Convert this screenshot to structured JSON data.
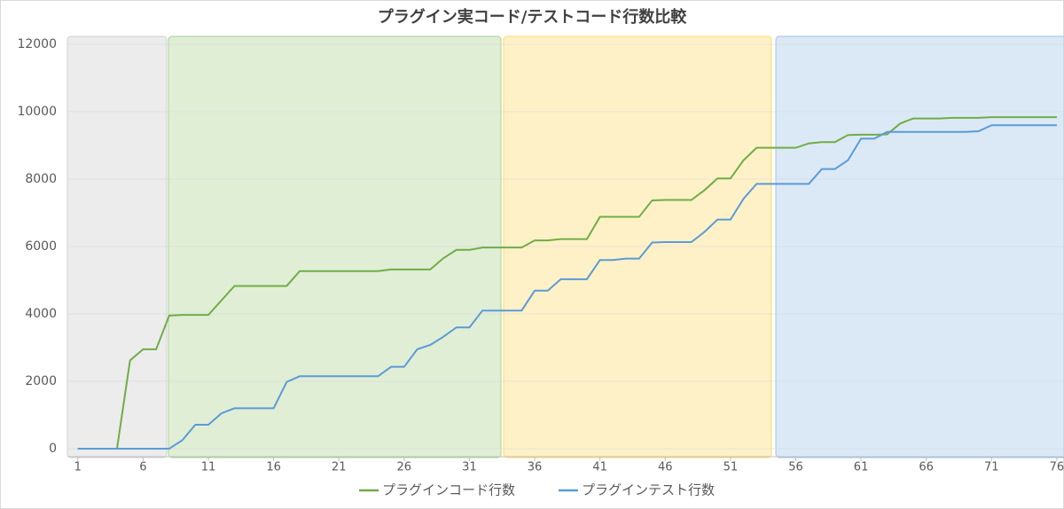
{
  "chart_data": {
    "type": "line",
    "title": "プラグイン実コード/テストコード行数比較",
    "x": [
      1,
      2,
      3,
      4,
      5,
      6,
      7,
      8,
      9,
      10,
      11,
      12,
      13,
      14,
      15,
      16,
      17,
      18,
      19,
      20,
      21,
      22,
      23,
      24,
      25,
      26,
      27,
      28,
      29,
      30,
      31,
      32,
      33,
      34,
      35,
      36,
      37,
      38,
      39,
      40,
      41,
      42,
      43,
      44,
      45,
      46,
      47,
      48,
      49,
      50,
      51,
      52,
      53,
      54,
      55,
      56,
      57,
      58,
      59,
      60,
      61,
      62,
      63,
      64,
      65,
      66,
      67,
      68,
      69,
      70,
      71,
      72,
      73,
      74,
      75,
      76
    ],
    "series": [
      {
        "name": "プラグインコード行数",
        "color": "#70ad47",
        "values": [
          0,
          0,
          0,
          0,
          2620,
          2950,
          2950,
          3950,
          3970,
          3970,
          3970,
          4400,
          4830,
          4830,
          4830,
          4830,
          4830,
          5270,
          5270,
          5270,
          5270,
          5270,
          5270,
          5270,
          5320,
          5320,
          5320,
          5320,
          5650,
          5900,
          5900,
          5970,
          5970,
          5970,
          5970,
          6180,
          6180,
          6220,
          6220,
          6220,
          6880,
          6880,
          6880,
          6880,
          7370,
          7380,
          7380,
          7380,
          7670,
          8020,
          8020,
          8560,
          8930,
          8930,
          8930,
          8930,
          9060,
          9100,
          9100,
          9310,
          9320,
          9320,
          9330,
          9650,
          9800,
          9800,
          9800,
          9820,
          9820,
          9820,
          9840,
          9840,
          9840,
          9840,
          9840,
          9840
        ]
      },
      {
        "name": "プラグインテスト行数",
        "color": "#5b9bd5",
        "values": [
          0,
          0,
          0,
          0,
          0,
          0,
          0,
          0,
          250,
          710,
          710,
          1050,
          1200,
          1200,
          1200,
          1200,
          1980,
          2150,
          2150,
          2150,
          2150,
          2150,
          2150,
          2150,
          2430,
          2430,
          2950,
          3080,
          3320,
          3600,
          3600,
          4100,
          4100,
          4100,
          4100,
          4690,
          4690,
          5030,
          5030,
          5030,
          5600,
          5600,
          5640,
          5640,
          6120,
          6130,
          6130,
          6130,
          6430,
          6800,
          6800,
          7420,
          7860,
          7860,
          7860,
          7860,
          7860,
          8300,
          8300,
          8560,
          9200,
          9200,
          9400,
          9400,
          9400,
          9400,
          9400,
          9400,
          9400,
          9420,
          9600,
          9600,
          9600,
          9600,
          9600,
          9600
        ]
      }
    ],
    "xlim": [
      0.2,
      76.55
    ],
    "xticks": [
      1,
      6,
      11,
      16,
      21,
      26,
      31,
      36,
      41,
      46,
      51,
      56,
      61,
      66,
      71,
      76
    ],
    "ylim": [
      0,
      12000
    ],
    "yticks": [
      0,
      2000,
      4000,
      6000,
      8000,
      10000,
      12000
    ],
    "grid": true,
    "legend": "bottom"
  }
}
